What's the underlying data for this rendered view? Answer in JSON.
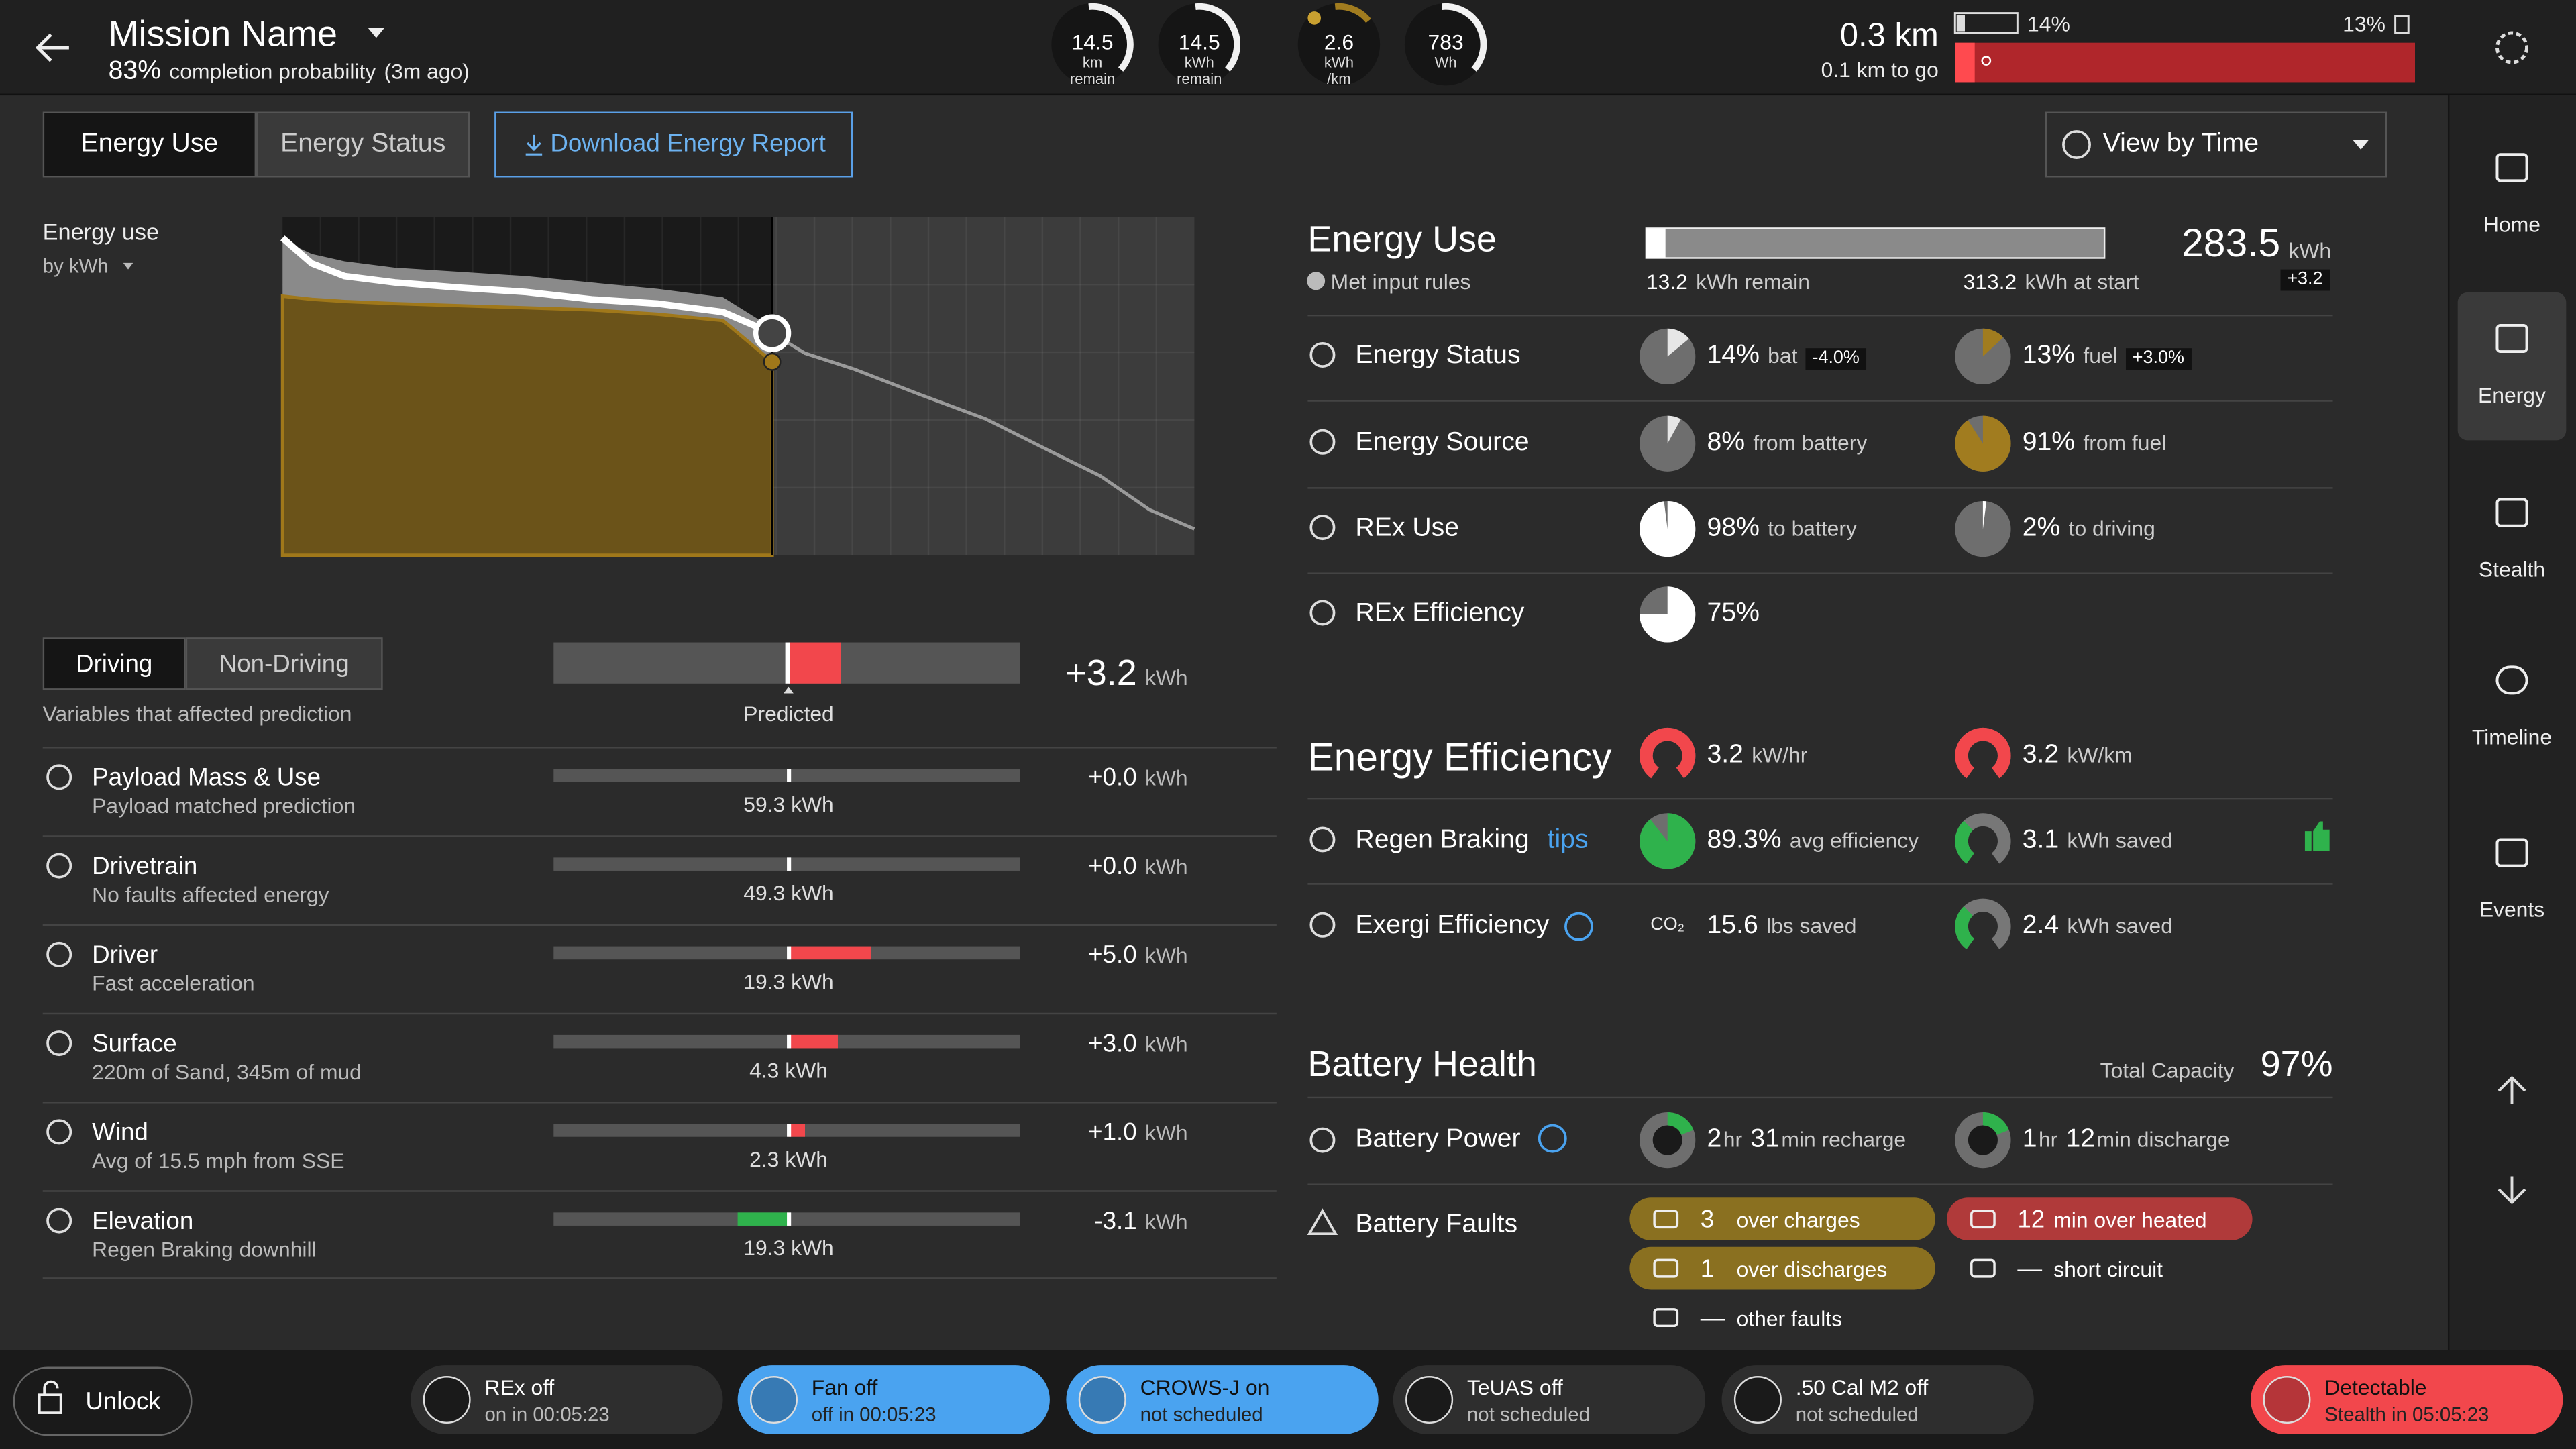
{
  "header": {
    "title": "Mission Name",
    "completion_value": "83%",
    "completion_label": "completion probability",
    "updated": "(3m ago)",
    "gauges": [
      {
        "value": "14.5",
        "unit": "km",
        "label": "remain"
      },
      {
        "value": "14.5",
        "unit": "kWh",
        "label": "remain"
      },
      {
        "value": "2.6",
        "unit": "kWh",
        "label": "/km"
      },
      {
        "value": "783",
        "unit": "Wh"
      }
    ],
    "distance": "0.3 km",
    "distance_to_go": "0.1 km to go",
    "battery": "14%",
    "fuel": "13%"
  },
  "tabs": [
    "Energy Use",
    "Energy Status"
  ],
  "download_button": "Download Energy Report",
  "view_select": "View by Time",
  "chart_data": {
    "type": "line",
    "title": "Energy use",
    "subtitle": "by kWh",
    "x": [
      0,
      3.2,
      6.8,
      12.3,
      19.5,
      26.7,
      33.9,
      41.1,
      48.3,
      53.7,
      57.3,
      62.7,
      69.9,
      77.1,
      84.3,
      89.7,
      95.1,
      100
    ],
    "xlim": [
      0,
      100
    ],
    "ylim": [
      0,
      320
    ],
    "series": [
      {
        "style": "area",
        "color": "#8a8a8a",
        "values": [
          298,
          285,
          278,
          272,
          268,
          264,
          258,
          252,
          244,
          215,
          null,
          null,
          null,
          null,
          null,
          null,
          null,
          null
        ]
      },
      {
        "style": "area",
        "color": "#6b5319",
        "values": [
          245,
          242,
          240,
          238,
          236,
          234,
          232,
          228,
          222,
          183,
          null,
          null,
          null,
          null,
          null,
          null,
          null,
          null
        ]
      },
      {
        "style": "line",
        "color": "#9a9a9a",
        "values": [
          null,
          null,
          null,
          null,
          null,
          null,
          null,
          null,
          null,
          210,
          191,
          176,
          152,
          129,
          98,
          75,
          43,
          25
        ]
      },
      {
        "style": "line",
        "color": "#ffffff",
        "values": [
          300,
          276,
          264,
          258,
          253,
          249,
          242,
          238,
          230,
          210,
          null,
          null,
          null,
          null,
          null,
          null,
          null,
          null
        ]
      }
    ]
  },
  "prediction": {
    "tabs": [
      "Driving",
      "Non-Driving"
    ],
    "subtitle": "Variables that affected prediction",
    "marker_label": "Predicted",
    "total": {
      "value": 3.2,
      "label": "+3.2"
    },
    "unit": "kWh",
    "rows": [
      {
        "title": "Payload Mass & Use",
        "sub": "Payload matched prediction",
        "base": "59.3 kWh",
        "delta": {
          "value": 0,
          "label": "+0.0"
        }
      },
      {
        "title": "Drivetrain",
        "sub": "No faults affected energy",
        "base": "49.3 kWh",
        "delta": {
          "value": 0,
          "label": "+0.0"
        }
      },
      {
        "title": "Driver",
        "sub": "Fast acceleration",
        "base": "19.3 kWh",
        "delta": {
          "value": 5,
          "label": "+5.0"
        }
      },
      {
        "title": "Surface",
        "sub": "220m of Sand, 345m of mud",
        "base": "4.3 kWh",
        "delta": {
          "value": 3,
          "label": "+3.0"
        }
      },
      {
        "title": "Wind",
        "sub": "Avg of 15.5 mph from SSE",
        "base": "2.3 kWh",
        "delta": {
          "value": 1,
          "label": "+1.0"
        }
      },
      {
        "title": "Elevation",
        "sub": "Regen Braking downhill",
        "base": "19.3 kWh",
        "delta": {
          "value": -3.1,
          "label": "-3.1"
        }
      }
    ]
  },
  "energy_use": {
    "title": "Energy Use",
    "status": "Met input rules",
    "remain": 13.2,
    "remain_unit": "kWh remain",
    "start": 313.2,
    "start_unit": "kWh at start",
    "total": "283.5",
    "total_unit": "kWh",
    "change": "+3.2"
  },
  "energy_rows": [
    {
      "label": "Energy Status",
      "items": [
        {
          "value": 14,
          "unit": "%",
          "text": "bat",
          "badge": "-4.0%",
          "color": "#e6e6e6"
        },
        {
          "value": 13,
          "unit": "%",
          "text": "fuel",
          "badge": "+3.0%",
          "color": "#a17c1f"
        }
      ]
    },
    {
      "label": "Energy Source",
      "items": [
        {
          "value": 8,
          "unit": "%",
          "text": "from battery",
          "color": "#e6e6e6"
        },
        {
          "value": 91,
          "unit": "%",
          "text": "from fuel",
          "color": "#a17c1f"
        }
      ]
    },
    {
      "label": "REx Use",
      "items": [
        {
          "value": 98,
          "unit": "%",
          "text": "to battery",
          "color": "#ffffff"
        },
        {
          "value": 2,
          "unit": "%",
          "text": "to driving",
          "color": "#ffffff"
        }
      ]
    },
    {
      "label": "REx Efficiency",
      "items": [
        {
          "value": 75,
          "unit": "%",
          "color": "#ffffff"
        }
      ]
    }
  ],
  "efficiency": {
    "title": "Energy Efficiency",
    "top": [
      {
        "value": "3.2",
        "unit": "kW/hr"
      },
      {
        "value": "3.2",
        "unit": "kW/km"
      }
    ],
    "rows": [
      {
        "label": "Regen Braking",
        "link": "tips",
        "items": [
          {
            "value": 89.3,
            "unit": "%",
            "text": "avg efficiency",
            "color": "#2fb24c"
          },
          {
            "value": "3.1",
            "text": "kWh saved"
          }
        ]
      },
      {
        "label": "Exergi Efficiency",
        "items": [
          {
            "icon": "CO₂",
            "value": "15.6",
            "text": "lbs saved"
          },
          {
            "value": "2.4",
            "text": "kWh saved"
          }
        ]
      }
    ]
  },
  "battery_health": {
    "title": "Battery Health",
    "capacity_label": "Total Capacity",
    "capacity": "97%",
    "power": {
      "label": "Battery Power",
      "items": [
        {
          "hours": "2",
          "hours_unit": "hr",
          "minutes": "31",
          "minutes_text": "min recharge"
        },
        {
          "hours": "1",
          "hours_unit": "hr",
          "minutes": "12",
          "minutes_text": "min discharge"
        }
      ]
    },
    "faults": {
      "label": "Battery Faults",
      "items": [
        {
          "count": "3",
          "text": "over charges",
          "style": "warning"
        },
        {
          "count": "1",
          "text": "over discharges",
          "style": "warning"
        },
        {
          "count": "12",
          "text": "min over heated",
          "style": "critical"
        },
        {
          "count": "—",
          "text": "short circuit",
          "style": "none"
        },
        {
          "count": "—",
          "text": "other faults",
          "style": "none"
        }
      ]
    }
  },
  "sidebar": [
    "Home",
    "Energy",
    "Stealth",
    "Timeline",
    "Events"
  ],
  "bottom_bar": {
    "unlock": "Unlock",
    "items": [
      {
        "title": "REx off",
        "sub": "on in 00:05:23",
        "style": "default"
      },
      {
        "title": "Fan off",
        "sub": "off in 00:05:23",
        "style": "active"
      },
      {
        "title": "CROWS-J on",
        "sub": "not scheduled",
        "style": "active"
      },
      {
        "title": "TeUAS off",
        "sub": "not scheduled",
        "style": "default"
      },
      {
        "title": ".50 Cal M2 off",
        "sub": "not scheduled",
        "style": "default"
      },
      {
        "title": "Detectable",
        "sub": "Stealth in 05:05:23",
        "style": "alert"
      }
    ]
  }
}
